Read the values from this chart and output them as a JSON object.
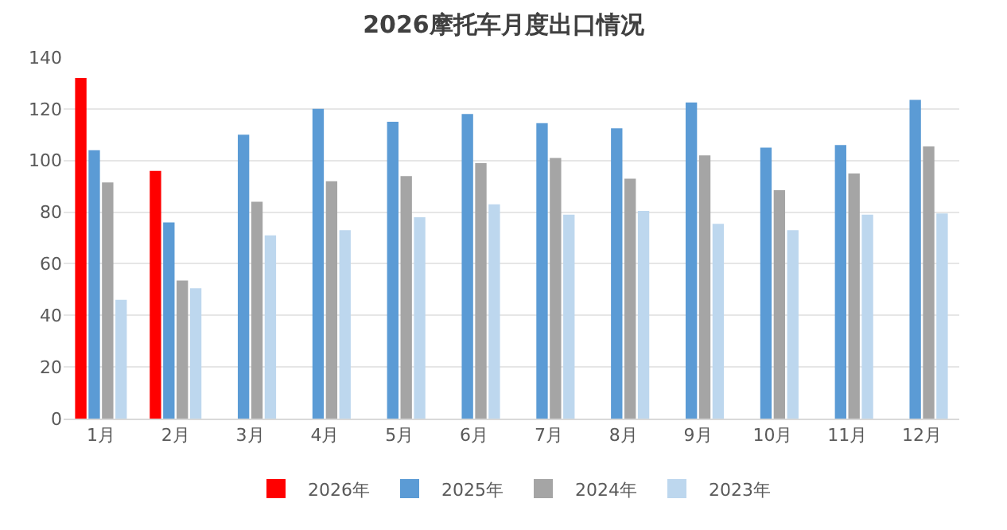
{
  "chart_data": {
    "type": "bar",
    "title": "2026摩托车月度出口情况",
    "categories": [
      "1月",
      "2月",
      "3月",
      "4月",
      "5月",
      "6月",
      "7月",
      "8月",
      "9月",
      "10月",
      "11月",
      "12月"
    ],
    "series": [
      {
        "name": "2026年",
        "color": "#ff0000",
        "values": [
          132,
          96,
          null,
          null,
          null,
          null,
          null,
          null,
          null,
          null,
          null,
          null
        ]
      },
      {
        "name": "2025年",
        "color": "#5b9bd5",
        "values": [
          104,
          76,
          110,
          120,
          115,
          118,
          114.5,
          112.5,
          122.5,
          105,
          106,
          123.5
        ]
      },
      {
        "name": "2024年",
        "color": "#a5a5a5",
        "values": [
          91.5,
          53.5,
          84,
          92,
          94,
          99,
          101,
          93,
          102,
          88.5,
          95,
          105.5
        ]
      },
      {
        "name": "2023年",
        "color": "#bdd7ee",
        "values": [
          46,
          50.5,
          71,
          73,
          78,
          83,
          79,
          80.5,
          75.5,
          73,
          79,
          79.5
        ]
      }
    ],
    "ylim": [
      0,
      140
    ],
    "yticks": [
      0,
      20,
      40,
      60,
      80,
      100,
      120,
      140
    ],
    "grid": "y",
    "legend": "bottom"
  }
}
